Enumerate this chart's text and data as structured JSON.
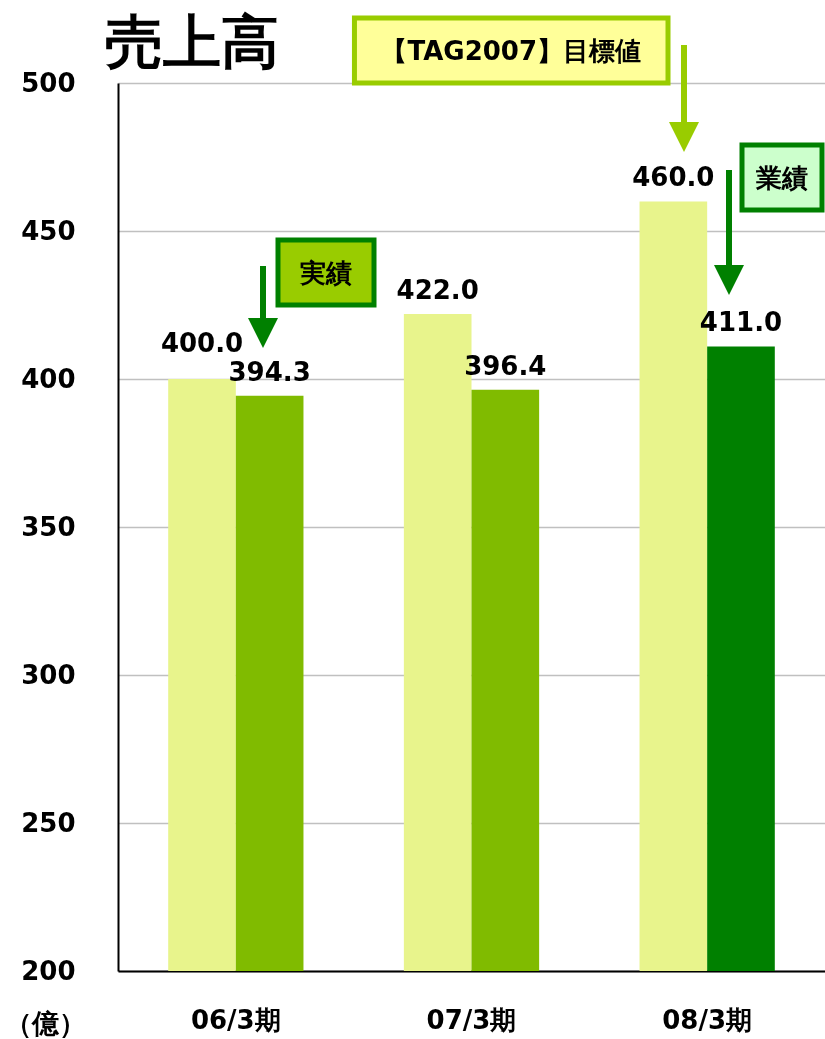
{
  "chart_data": {
    "type": "bar",
    "title": "売上高",
    "ylabel": "（億）",
    "categories": [
      "06/3期",
      "07/3期",
      "08/3期"
    ],
    "series": [
      {
        "color": "#e8f48c",
        "values": [
          400.0,
          422.0,
          460.0
        ],
        "value_labels": [
          "400.0",
          "422.0",
          "460.0"
        ]
      },
      {
        "colors": [
          "#80bb00",
          "#80bb00",
          "#008000"
        ],
        "values": [
          394.3,
          396.4,
          411.0
        ],
        "value_labels": [
          "394.3",
          "396.4",
          "411.0"
        ]
      }
    ],
    "ylim": [
      200,
      500
    ],
    "yticks": [
      200,
      250,
      300,
      350,
      400,
      450,
      500
    ],
    "grid": "y",
    "annotations": [
      "【TAG2007】目標値",
      "実績",
      "業績"
    ]
  }
}
